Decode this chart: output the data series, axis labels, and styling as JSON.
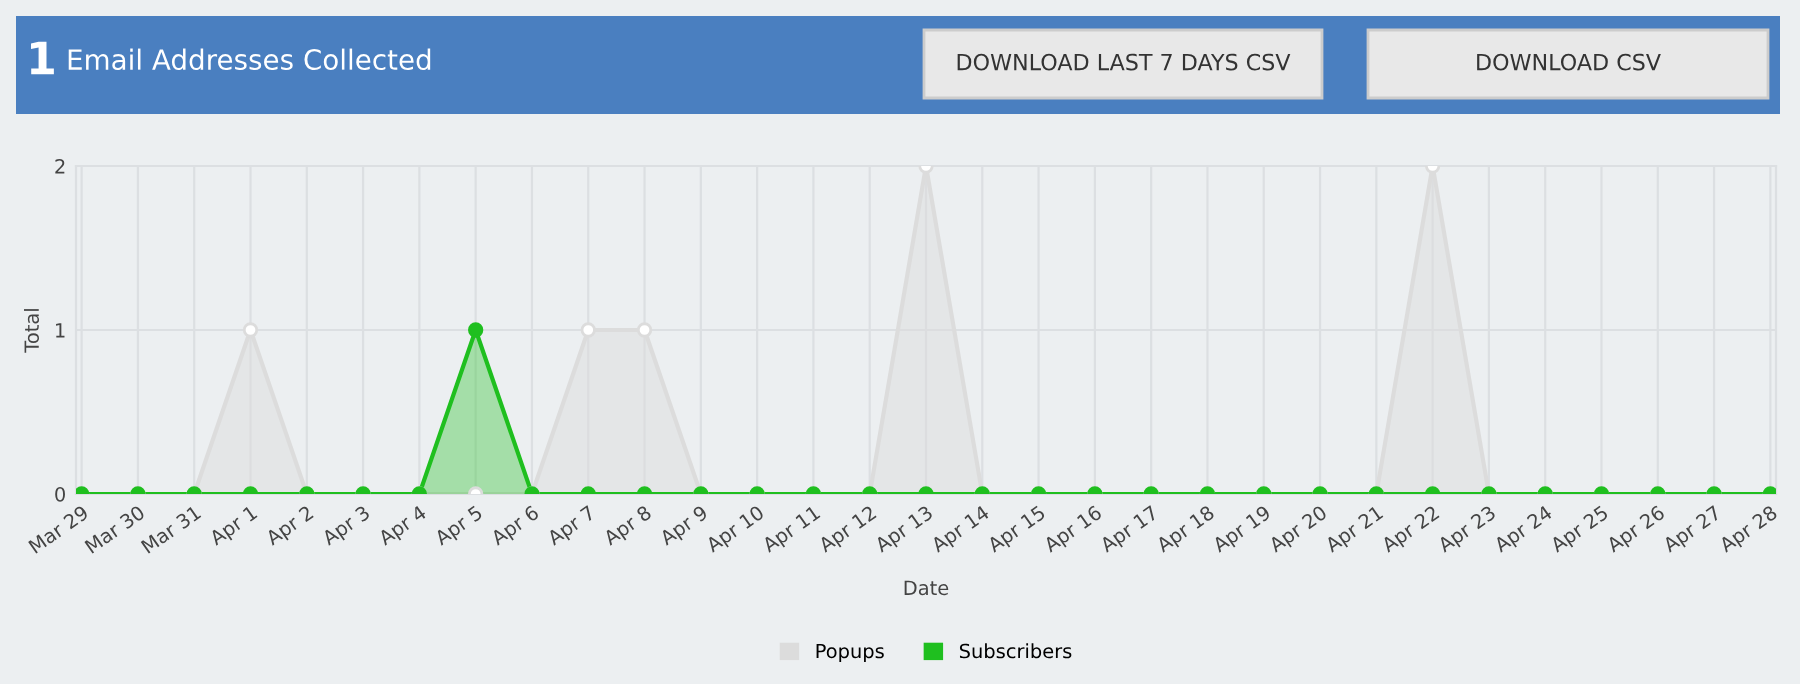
{
  "chart_data": {
    "type": "area",
    "title": "Email Addresses Collected",
    "annotations": [
      "1",
      "DOWNLOAD LAST 7 DAYS CSV",
      "DOWNLOAD CSV"
    ],
    "xlabel": "Date",
    "ylabel": "Total",
    "categories": [
      "Mar 29",
      "Mar 30",
      "Mar 31",
      "Apr 1",
      "Apr 2",
      "Apr 3",
      "Apr 4",
      "Apr 5",
      "Apr 6",
      "Apr 7",
      "Apr 8",
      "Apr 9",
      "Apr 10",
      "Apr 11",
      "Apr 12",
      "Apr 13",
      "Apr 14",
      "Apr 15",
      "Apr 16",
      "Apr 17",
      "Apr 18",
      "Apr 19",
      "Apr 20",
      "Apr 21",
      "Apr 22",
      "Apr 23",
      "Apr 24",
      "Apr 25",
      "Apr 26",
      "Apr 27",
      "Apr 28"
    ],
    "series": [
      {
        "name": "Popups",
        "color": "#dcdcdc",
        "values": [
          0,
          0,
          0,
          1,
          0,
          0,
          0,
          0,
          0,
          1,
          1,
          0,
          0,
          0,
          0,
          2,
          0,
          0,
          0,
          0,
          0,
          0,
          0,
          0,
          2,
          0,
          0,
          0,
          0,
          0,
          0
        ]
      },
      {
        "name": "Subscribers",
        "color": "#1fbf1f",
        "values": [
          0,
          0,
          0,
          0,
          0,
          0,
          0,
          1,
          0,
          0,
          0,
          0,
          0,
          0,
          0,
          0,
          0,
          0,
          0,
          0,
          0,
          0,
          0,
          0,
          0,
          0,
          0,
          0,
          0,
          0,
          0
        ]
      }
    ],
    "ylim": [
      0,
      2
    ],
    "yticks": [
      0,
      1,
      2
    ],
    "grid": true,
    "legend": "bottom",
    "marker": "circle",
    "line_style": "solid"
  }
}
